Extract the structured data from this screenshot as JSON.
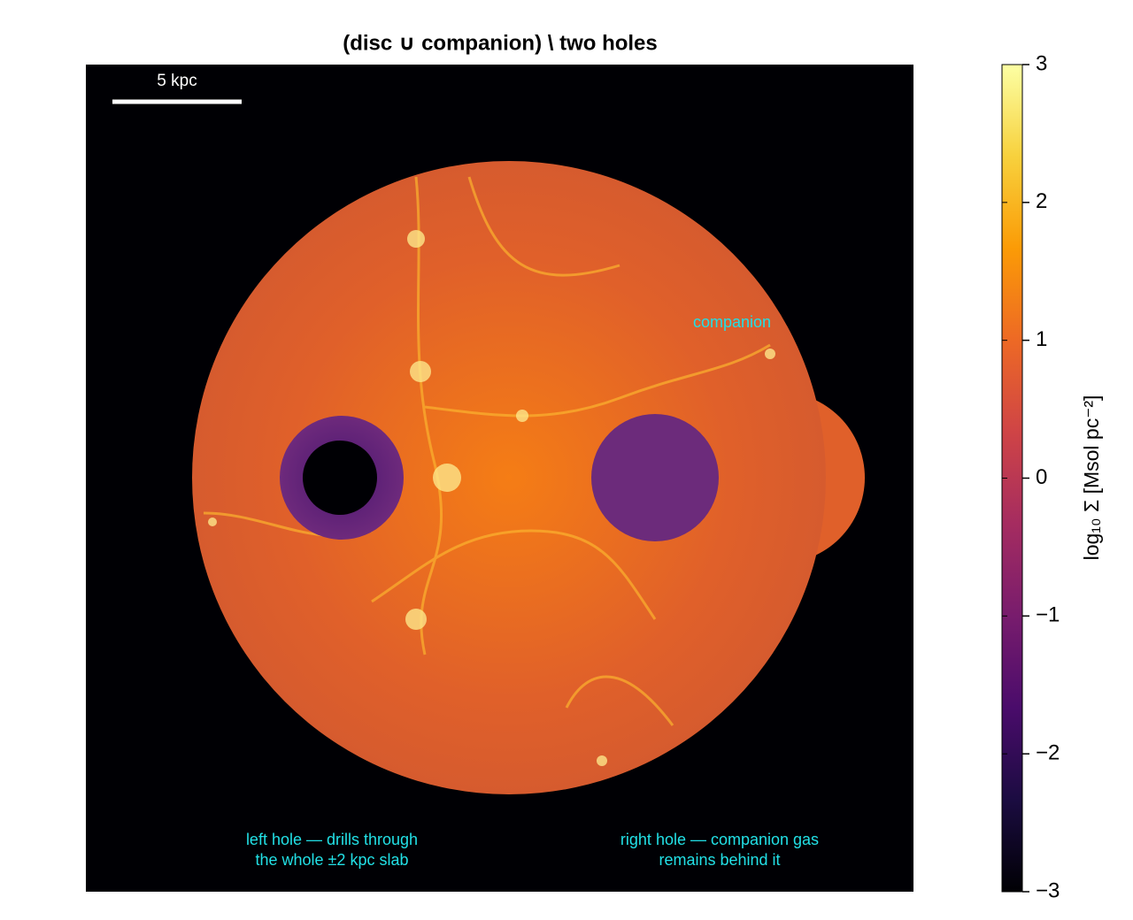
{
  "chart_data": {
    "type": "image",
    "title": "(disc ∪ companion) \\ two holes",
    "colormap": "inferno",
    "colorbar_label": "log₁₀ Σ  [Msol pc⁻²]",
    "clim": [
      -3,
      3
    ],
    "cticks": [
      3,
      2,
      1,
      0,
      {
        "value": -1,
        "label": "−1"
      },
      {
        "value": -2,
        "label": "−2"
      },
      {
        "value": -3,
        "label": "−3"
      }
    ],
    "scale_bar_label": "5 kpc",
    "annotations": [
      {
        "lines": [
          "companion"
        ]
      },
      {
        "lines": [
          "left hole — drills through",
          "the whole ±2 kpc slab"
        ]
      },
      {
        "lines": [
          "right hole — companion gas",
          "remains behind it"
        ]
      }
    ]
  }
}
